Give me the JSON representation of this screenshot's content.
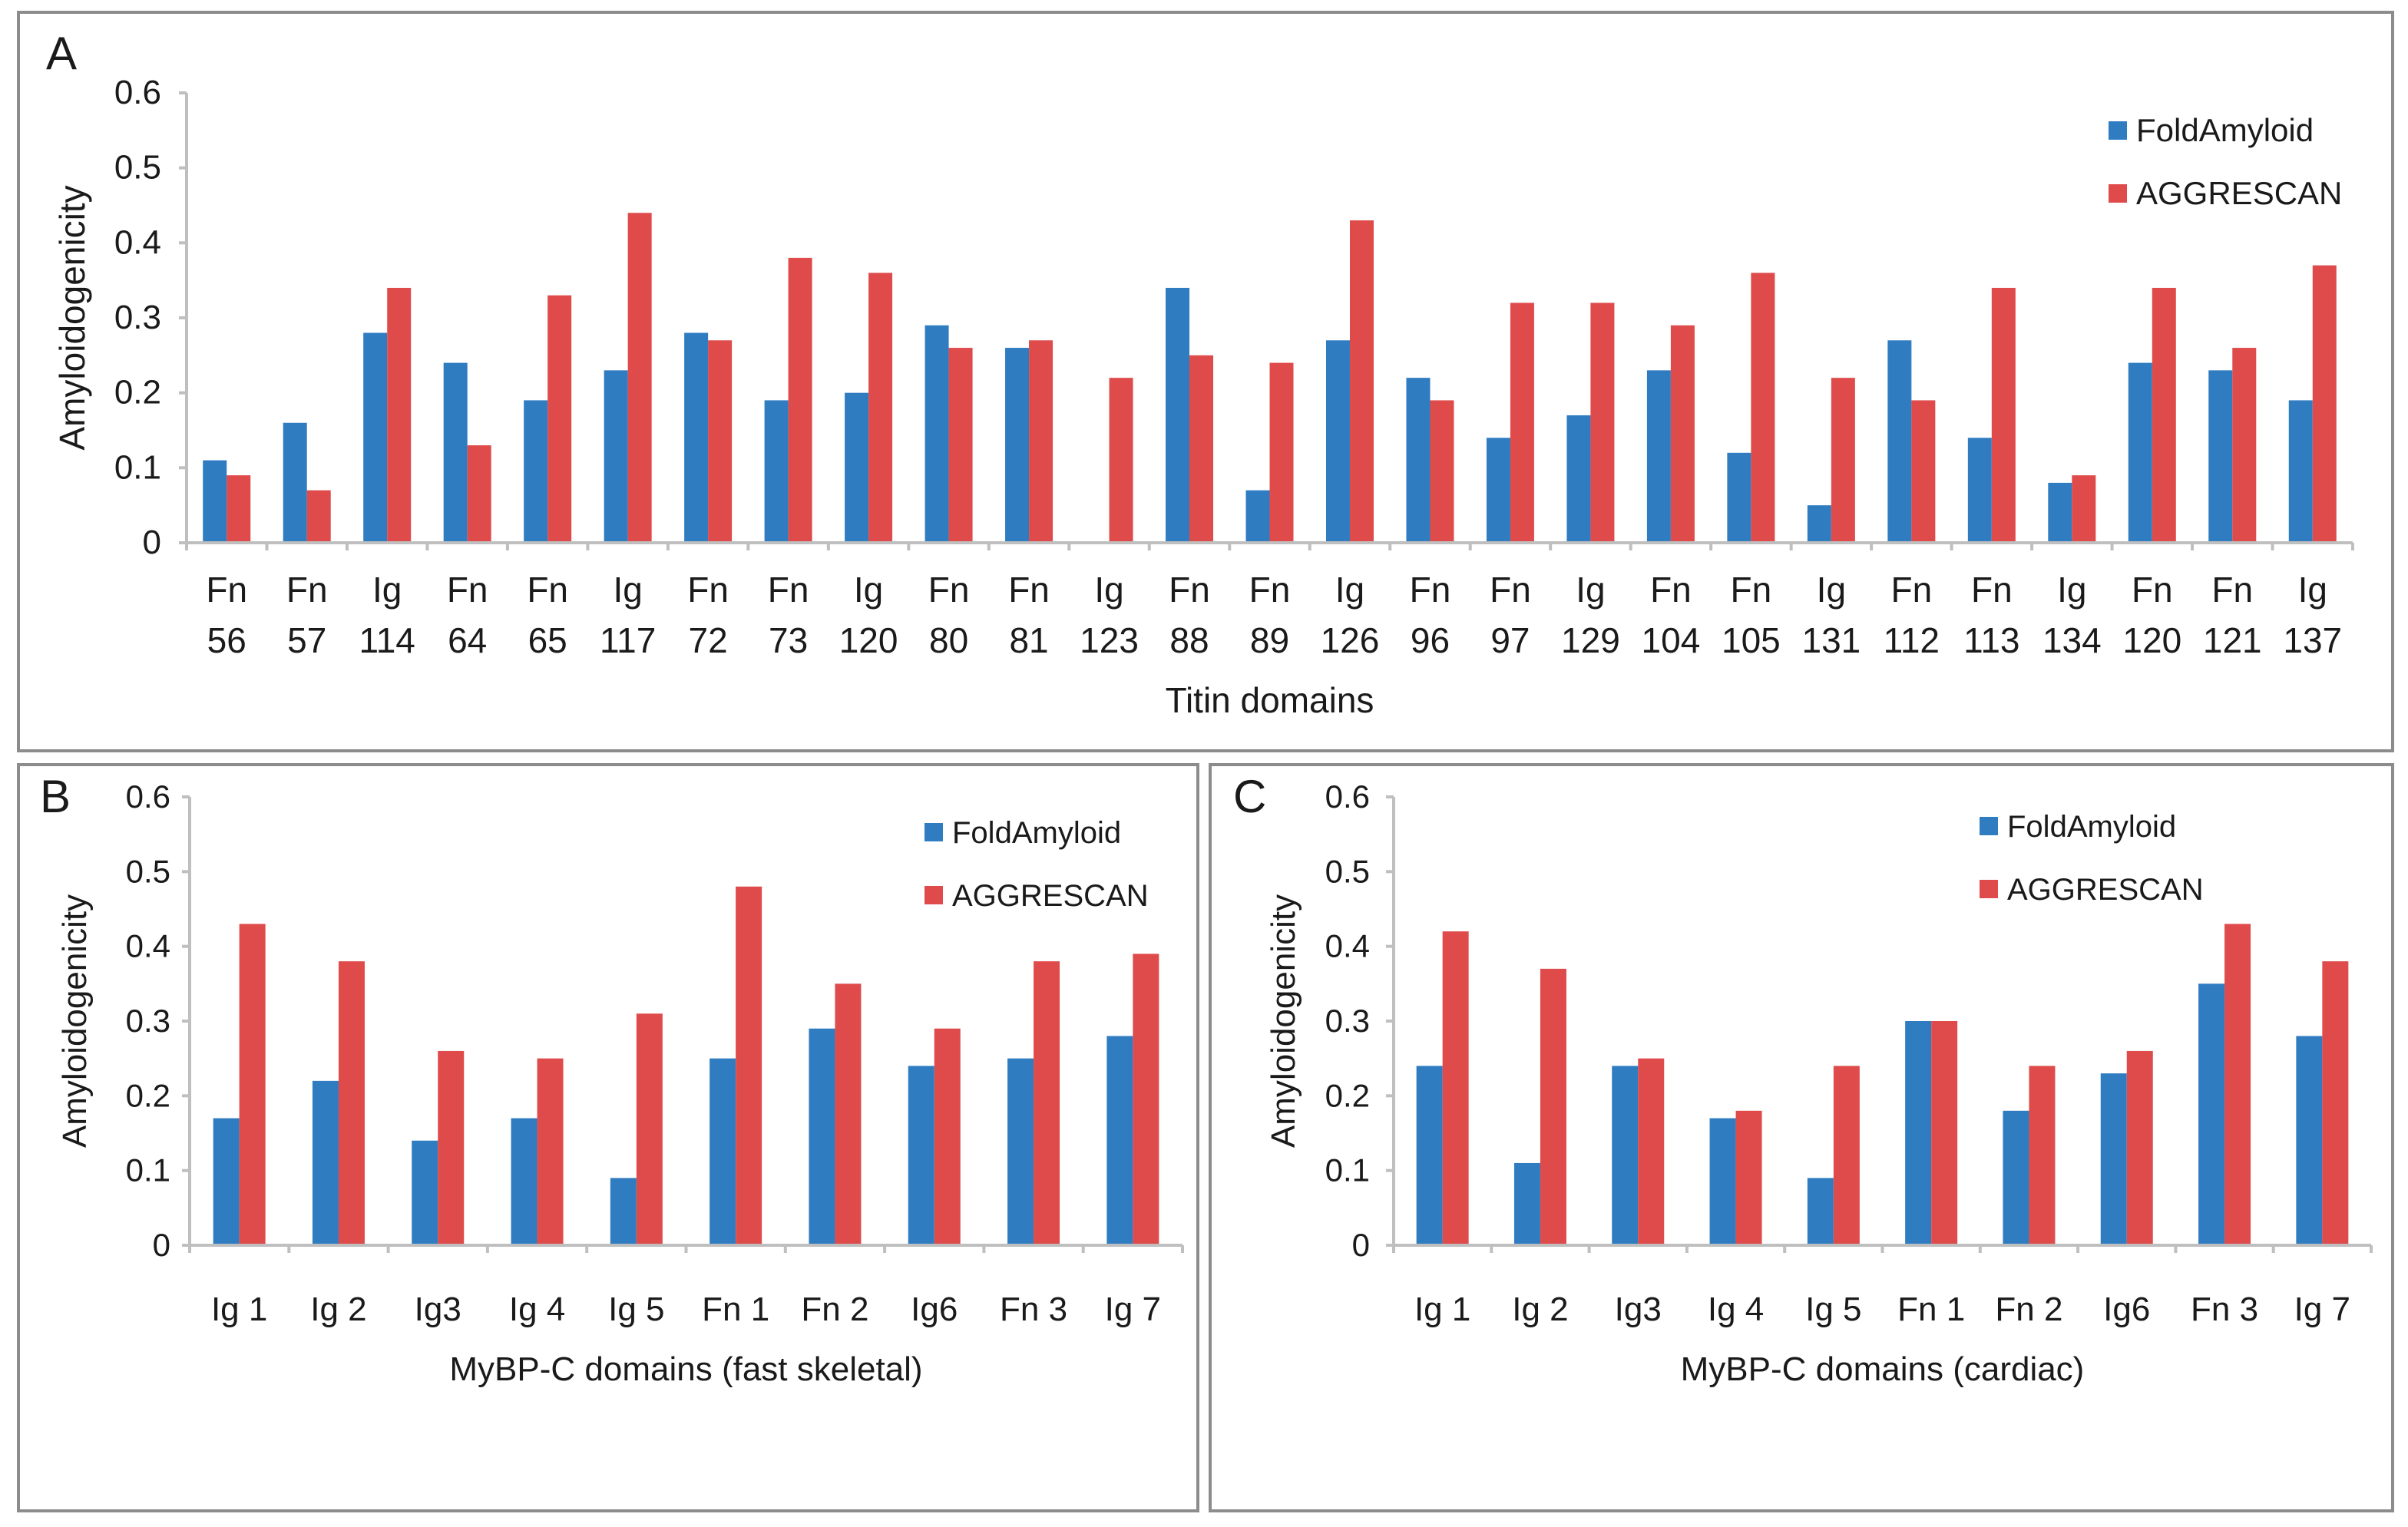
{
  "colors": {
    "fold": "#2f7cc1",
    "aggr": "#df4b4b",
    "axis": "#bfbfbf"
  },
  "chart_data": [
    {
      "id": "A",
      "type": "bar",
      "panel_label": "A",
      "ylabel": "Amyloidogenicity",
      "xlabel": "Titin domains",
      "ylim": [
        0,
        0.6
      ],
      "yticks": [
        "0",
        "0.1",
        "0.2",
        "0.3",
        "0.4",
        "0.5",
        "0.6"
      ],
      "categories": [
        [
          "Fn",
          "56"
        ],
        [
          "Fn",
          "57"
        ],
        [
          "Ig",
          "114"
        ],
        [
          "Fn",
          "64"
        ],
        [
          "Fn",
          "65"
        ],
        [
          "Ig",
          "117"
        ],
        [
          "Fn",
          "72"
        ],
        [
          "Fn",
          "73"
        ],
        [
          "Ig",
          "120"
        ],
        [
          "Fn",
          "80"
        ],
        [
          "Fn",
          "81"
        ],
        [
          "Ig",
          "123"
        ],
        [
          "Fn",
          "88"
        ],
        [
          "Fn",
          "89"
        ],
        [
          "Ig",
          "126"
        ],
        [
          "Fn",
          "96"
        ],
        [
          "Fn",
          "97"
        ],
        [
          "Ig",
          "129"
        ],
        [
          "Fn",
          "104"
        ],
        [
          "Fn",
          "105"
        ],
        [
          "Ig",
          "131"
        ],
        [
          "Fn",
          "112"
        ],
        [
          "Fn",
          "113"
        ],
        [
          "Ig",
          "134"
        ],
        [
          "Fn",
          "120"
        ],
        [
          "Fn",
          "121"
        ],
        [
          "Ig",
          "137"
        ]
      ],
      "series": [
        {
          "name": "FoldAmyloid",
          "values": [
            0.11,
            0.16,
            0.28,
            0.24,
            0.19,
            0.23,
            0.28,
            0.19,
            0.2,
            0.29,
            0.26,
            0.0,
            0.34,
            0.07,
            0.27,
            0.22,
            0.14,
            0.17,
            0.23,
            0.12,
            0.05,
            0.27,
            0.14,
            0.08,
            0.24,
            0.23,
            0.19
          ]
        },
        {
          "name": "AGGRESCAN",
          "values": [
            0.09,
            0.07,
            0.34,
            0.13,
            0.33,
            0.44,
            0.27,
            0.38,
            0.36,
            0.26,
            0.27,
            0.22,
            0.25,
            0.24,
            0.43,
            0.19,
            0.32,
            0.32,
            0.29,
            0.36,
            0.22,
            0.19,
            0.34,
            0.09,
            0.34,
            0.26,
            0.37
          ]
        }
      ],
      "legend": [
        "FoldAmyloid",
        "AGGRESCAN"
      ],
      "legend_position": "top-right"
    },
    {
      "id": "B",
      "type": "bar",
      "panel_label": "B",
      "ylabel": "Amyloidogenicity",
      "xlabel": "MyBP-C domains (fast skeletal)",
      "ylim": [
        0,
        0.6
      ],
      "yticks": [
        "0",
        "0.1",
        "0.2",
        "0.3",
        "0.4",
        "0.5",
        "0.6"
      ],
      "categories": [
        [
          "Ig 1"
        ],
        [
          "Ig 2"
        ],
        [
          "Ig3"
        ],
        [
          "Ig 4"
        ],
        [
          "Ig 5"
        ],
        [
          "Fn 1"
        ],
        [
          "Fn 2"
        ],
        [
          "Ig6"
        ],
        [
          "Fn 3"
        ],
        [
          "Ig 7"
        ]
      ],
      "series": [
        {
          "name": "FoldAmyloid",
          "values": [
            0.17,
            0.22,
            0.14,
            0.17,
            0.09,
            0.25,
            0.29,
            0.24,
            0.25,
            0.28
          ]
        },
        {
          "name": "AGGRESCAN",
          "values": [
            0.43,
            0.38,
            0.26,
            0.25,
            0.31,
            0.48,
            0.35,
            0.29,
            0.38,
            0.39
          ]
        }
      ],
      "legend": [
        "FoldAmyloid",
        "AGGRESCAN"
      ],
      "legend_position": "top-right"
    },
    {
      "id": "C",
      "type": "bar",
      "panel_label": "C",
      "ylabel": "Amyloidogenicity",
      "xlabel": "MyBP-C domains (cardiac)",
      "ylim": [
        0,
        0.6
      ],
      "yticks": [
        "0",
        "0.1",
        "0.2",
        "0.3",
        "0.4",
        "0.5",
        "0.6"
      ],
      "categories": [
        [
          "Ig 1"
        ],
        [
          "Ig 2"
        ],
        [
          "Ig3"
        ],
        [
          "Ig 4"
        ],
        [
          "Ig 5"
        ],
        [
          "Fn 1"
        ],
        [
          "Fn 2"
        ],
        [
          "Ig6"
        ],
        [
          "Fn 3"
        ],
        [
          "Ig 7"
        ]
      ],
      "series": [
        {
          "name": "FoldAmyloid",
          "values": [
            0.24,
            0.11,
            0.24,
            0.17,
            0.09,
            0.3,
            0.18,
            0.23,
            0.35,
            0.28
          ]
        },
        {
          "name": "AGGRESCAN",
          "values": [
            0.42,
            0.37,
            0.25,
            0.18,
            0.24,
            0.3,
            0.24,
            0.26,
            0.43,
            0.38
          ]
        }
      ],
      "legend": [
        "FoldAmyloid",
        "AGGRESCAN"
      ],
      "legend_position": "top-right"
    }
  ]
}
